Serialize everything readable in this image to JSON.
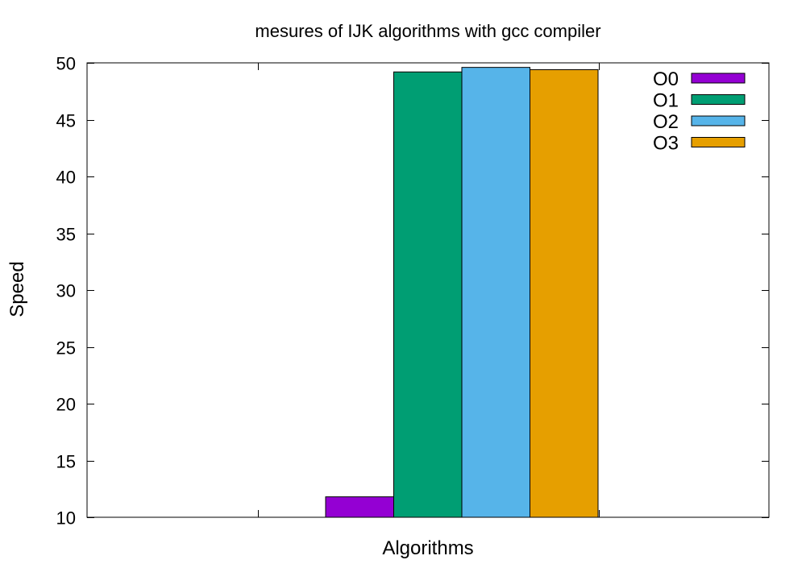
{
  "chart_data": {
    "type": "bar",
    "title": "mesures of IJK algorithms with gcc compiler",
    "xlabel": "Algorithms",
    "ylabel": "Speed",
    "ylim": [
      10,
      50
    ],
    "yticks": [
      10,
      15,
      20,
      25,
      30,
      35,
      40,
      45,
      50
    ],
    "grid": false,
    "legend_position": "top-right",
    "categories": [
      ""
    ],
    "series": [
      {
        "name": "O0",
        "values": [
          11.8
        ],
        "color": "#9400d3"
      },
      {
        "name": "O1",
        "values": [
          49.2
        ],
        "color": "#009e73"
      },
      {
        "name": "O2",
        "values": [
          49.6
        ],
        "color": "#56b4e9"
      },
      {
        "name": "O3",
        "values": [
          49.4
        ],
        "color": "#e69f00"
      }
    ]
  }
}
